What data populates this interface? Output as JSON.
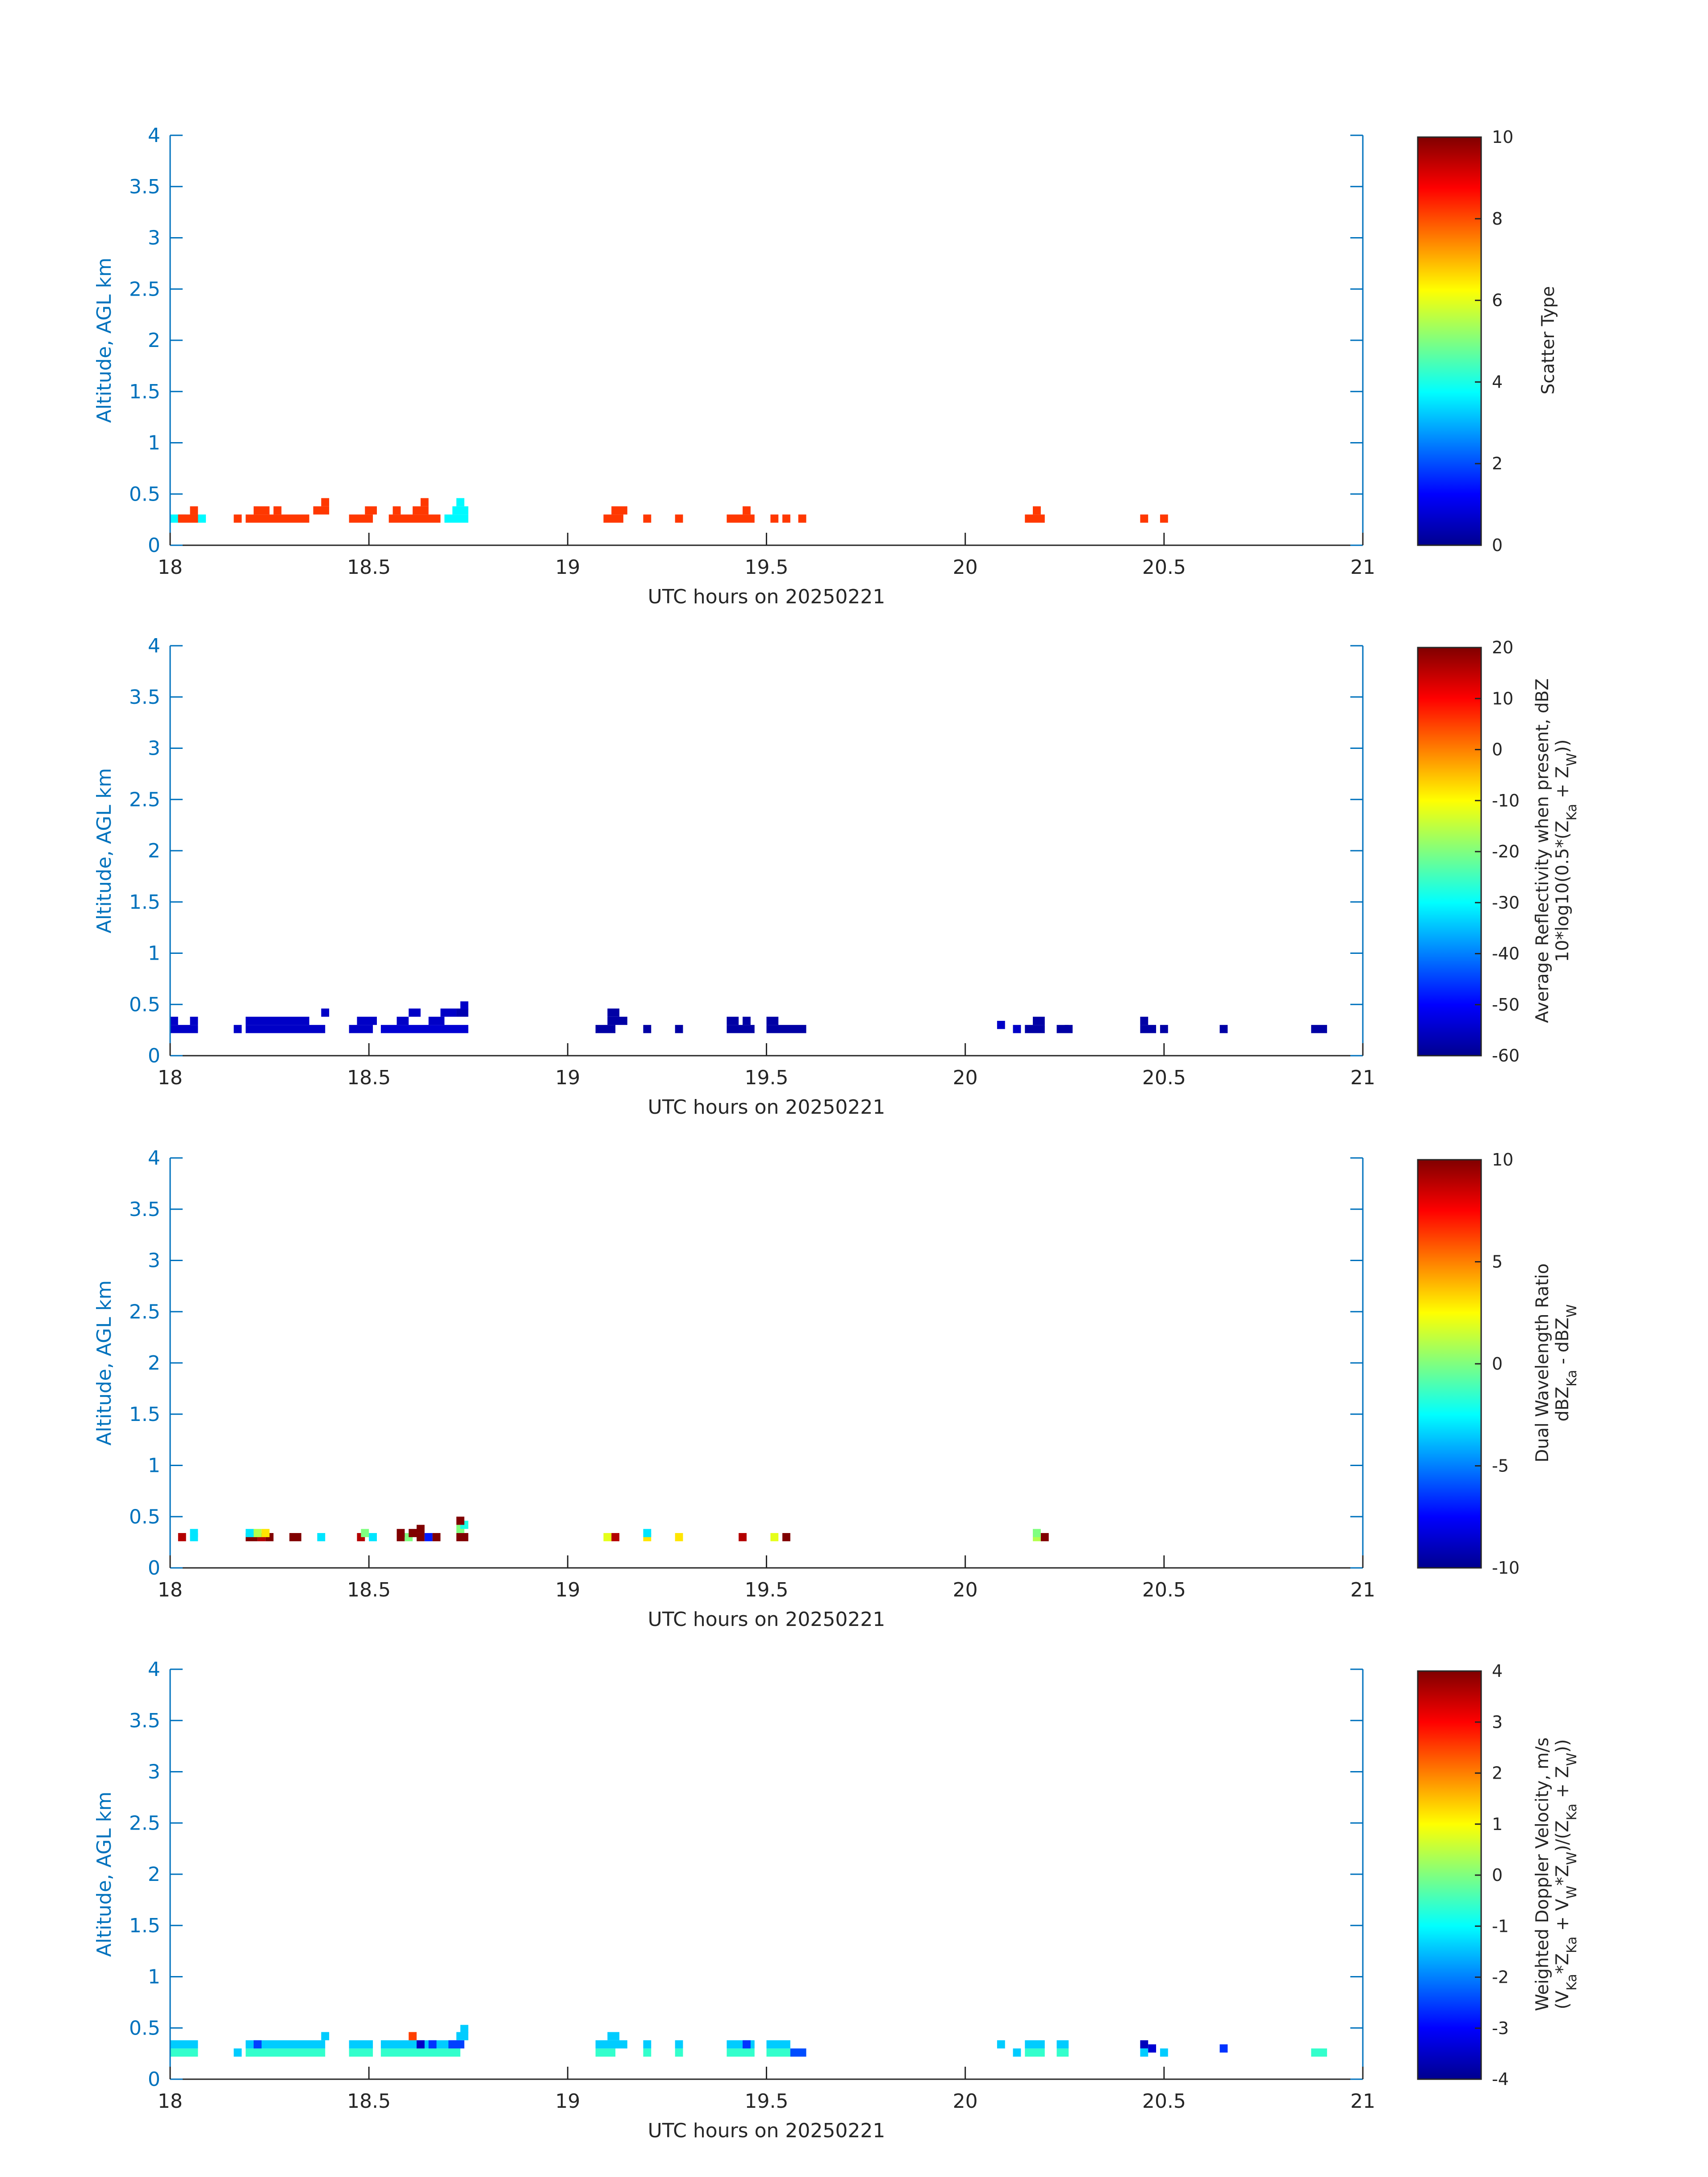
{
  "colors": {
    "axis_blue": "#0072BD",
    "text_dark": "#262626",
    "border": "#000000"
  },
  "chart_data": [
    {
      "type": "heatmap",
      "ylabel": "Altitude, AGL km",
      "xlabel": "UTC hours on 20250221",
      "xlim": [
        18,
        21
      ],
      "ylim": [
        0,
        4
      ],
      "xticks": [
        "18",
        "18.5",
        "19",
        "19.5",
        "20",
        "20.5",
        "21"
      ],
      "yticks": [
        "0",
        "0.5",
        "1",
        "1.5",
        "2",
        "2.5",
        "3",
        "3.5",
        "4"
      ],
      "colorbar": {
        "label_lines": [
          "Scatter Type"
        ],
        "range": [
          0,
          10
        ],
        "ticks": [
          "0",
          "2",
          "4",
          "6",
          "8",
          "10"
        ]
      },
      "cells": [
        [
          18.0,
          0.22,
          0.09,
          3.7
        ],
        [
          18.02,
          0.22,
          0.02,
          8.2
        ],
        [
          18.02,
          0.22,
          0.05,
          8.2
        ],
        [
          18.05,
          0.22,
          0.02,
          8.2
        ],
        [
          18.05,
          0.3,
          0.02,
          8.2
        ],
        [
          18.16,
          0.22,
          0.02,
          8.2
        ],
        [
          18.19,
          0.22,
          0.16,
          8.2
        ],
        [
          18.21,
          0.3,
          0.04,
          8.2
        ],
        [
          18.26,
          0.3,
          0.02,
          8.2
        ],
        [
          18.36,
          0.3,
          0.04,
          8.2
        ],
        [
          18.38,
          0.38,
          0.02,
          8.2
        ],
        [
          18.45,
          0.22,
          0.06,
          8.2
        ],
        [
          18.49,
          0.3,
          0.03,
          8.2
        ],
        [
          18.55,
          0.22,
          0.13,
          8.2
        ],
        [
          18.56,
          0.3,
          0.02,
          8.2
        ],
        [
          18.61,
          0.3,
          0.04,
          8.2
        ],
        [
          18.63,
          0.38,
          0.02,
          8.2
        ],
        [
          18.69,
          0.22,
          0.06,
          3.7
        ],
        [
          18.71,
          0.3,
          0.04,
          3.7
        ],
        [
          18.72,
          0.38,
          0.02,
          3.7
        ],
        [
          19.09,
          0.22,
          0.05,
          8.2
        ],
        [
          19.11,
          0.3,
          0.04,
          8.2
        ],
        [
          19.19,
          0.22,
          0.02,
          8.2
        ],
        [
          19.27,
          0.22,
          0.02,
          8.2
        ],
        [
          19.4,
          0.22,
          0.07,
          8.2
        ],
        [
          19.44,
          0.3,
          0.02,
          8.2
        ],
        [
          19.51,
          0.22,
          0.02,
          8.2
        ],
        [
          19.54,
          0.22,
          0.02,
          8.2
        ],
        [
          19.58,
          0.22,
          0.02,
          8.2
        ],
        [
          20.15,
          0.22,
          0.05,
          8.2
        ],
        [
          20.17,
          0.3,
          0.02,
          8.2
        ],
        [
          20.44,
          0.22,
          0.02,
          8.2
        ],
        [
          20.49,
          0.22,
          0.02,
          8.2
        ]
      ]
    },
    {
      "type": "heatmap",
      "ylabel": "Altitude, AGL km",
      "xlabel": "UTC hours on 20250221",
      "xlim": [
        18,
        21
      ],
      "ylim": [
        0,
        4
      ],
      "xticks": [
        "18",
        "18.5",
        "19",
        "19.5",
        "20",
        "20.5",
        "21"
      ],
      "yticks": [
        "0",
        "0.5",
        "1",
        "1.5",
        "2",
        "2.5",
        "3",
        "3.5",
        "4"
      ],
      "colorbar": {
        "label_lines": [
          "Average Reflectivity when present, dBZ",
          "10*log10(0.5*(Z",
          "Ka",
          " + Z",
          "W",
          "))"
        ],
        "range": [
          -60,
          20
        ],
        "ticks": [
          "-60",
          "-50",
          "-40",
          "-30",
          "-20",
          "-10",
          "0",
          "10",
          "20"
        ]
      },
      "cells": [
        [
          18.0,
          0.22,
          0.07,
          -55
        ],
        [
          18.0,
          0.3,
          0.02,
          -55
        ],
        [
          18.05,
          0.3,
          0.02,
          -55
        ],
        [
          18.16,
          0.22,
          0.02,
          -55
        ],
        [
          18.19,
          0.22,
          0.2,
          -55
        ],
        [
          18.19,
          0.3,
          0.12,
          -55
        ],
        [
          18.31,
          0.3,
          0.04,
          -55
        ],
        [
          18.38,
          0.38,
          0.02,
          -55
        ],
        [
          18.45,
          0.22,
          0.06,
          -55
        ],
        [
          18.47,
          0.3,
          0.05,
          -55
        ],
        [
          18.53,
          0.22,
          0.22,
          -54
        ],
        [
          18.57,
          0.3,
          0.03,
          -55
        ],
        [
          18.6,
          0.38,
          0.03,
          -55
        ],
        [
          18.65,
          0.3,
          0.04,
          -55
        ],
        [
          18.68,
          0.38,
          0.04,
          -55
        ],
        [
          18.72,
          0.38,
          0.03,
          -57
        ],
        [
          18.73,
          0.45,
          0.02,
          -55
        ],
        [
          19.07,
          0.22,
          0.05,
          -58
        ],
        [
          19.1,
          0.3,
          0.05,
          -58
        ],
        [
          19.1,
          0.38,
          0.03,
          -58
        ],
        [
          19.19,
          0.22,
          0.02,
          -58
        ],
        [
          19.27,
          0.22,
          0.02,
          -58
        ],
        [
          19.4,
          0.22,
          0.07,
          -58
        ],
        [
          19.4,
          0.3,
          0.03,
          -58
        ],
        [
          19.44,
          0.3,
          0.02,
          -58
        ],
        [
          19.5,
          0.22,
          0.1,
          -58
        ],
        [
          19.5,
          0.3,
          0.03,
          -58
        ],
        [
          20.08,
          0.26,
          0.02,
          -55
        ],
        [
          20.12,
          0.22,
          0.02,
          -55
        ],
        [
          20.15,
          0.22,
          0.05,
          -58
        ],
        [
          20.17,
          0.3,
          0.03,
          -58
        ],
        [
          20.23,
          0.22,
          0.03,
          -58
        ],
        [
          20.25,
          0.22,
          0.02,
          -58
        ],
        [
          20.44,
          0.22,
          0.04,
          -58
        ],
        [
          20.44,
          0.3,
          0.02,
          -58
        ],
        [
          20.49,
          0.22,
          0.02,
          -58
        ],
        [
          20.64,
          0.22,
          0.02,
          -58
        ],
        [
          20.87,
          0.22,
          0.04,
          -58
        ]
      ]
    },
    {
      "type": "heatmap",
      "ylabel": "Altitude, AGL km",
      "xlabel": "UTC hours on 20250221",
      "xlim": [
        18,
        21
      ],
      "ylim": [
        0,
        4
      ],
      "xticks": [
        "18",
        "18.5",
        "19",
        "19.5",
        "20",
        "20.5",
        "21"
      ],
      "yticks": [
        "0",
        "0.5",
        "1",
        "1.5",
        "2",
        "2.5",
        "3",
        "3.5",
        "4"
      ],
      "colorbar": {
        "label_lines": [
          "Dual Wavelength Ratio",
          "dBZ",
          "Ka",
          " - dBZ",
          "W"
        ],
        "range": [
          -10,
          10
        ],
        "ticks": [
          "-10",
          "-5",
          "0",
          "5",
          "10"
        ]
      },
      "cells": [
        [
          18.02,
          0.26,
          0.02,
          9
        ],
        [
          18.05,
          0.26,
          0.02,
          -3
        ],
        [
          18.05,
          0.3,
          0.02,
          -3
        ],
        [
          18.19,
          0.26,
          0.03,
          10
        ],
        [
          18.22,
          0.26,
          0.02,
          9
        ],
        [
          18.24,
          0.26,
          0.02,
          10
        ],
        [
          18.19,
          0.3,
          0.02,
          -3
        ],
        [
          18.21,
          0.3,
          0.02,
          1
        ],
        [
          18.23,
          0.3,
          0.02,
          3
        ],
        [
          18.3,
          0.26,
          0.03,
          10
        ],
        [
          18.37,
          0.26,
          0.02,
          -3
        ],
        [
          18.47,
          0.26,
          0.02,
          9
        ],
        [
          18.48,
          0.3,
          0.02,
          0
        ],
        [
          18.5,
          0.26,
          0.02,
          -3
        ],
        [
          18.57,
          0.26,
          0.02,
          10
        ],
        [
          18.59,
          0.26,
          0.02,
          0
        ],
        [
          18.6,
          0.3,
          0.02,
          10
        ],
        [
          18.62,
          0.26,
          0.02,
          10
        ],
        [
          18.64,
          0.26,
          0.02,
          -7
        ],
        [
          18.66,
          0.26,
          0.02,
          10
        ],
        [
          18.57,
          0.3,
          0.02,
          10
        ],
        [
          18.62,
          0.34,
          0.02,
          10
        ],
        [
          18.72,
          0.26,
          0.03,
          10
        ],
        [
          18.72,
          0.34,
          0.02,
          0
        ],
        [
          18.73,
          0.38,
          0.02,
          -2
        ],
        [
          18.72,
          0.42,
          0.02,
          10
        ],
        [
          19.09,
          0.26,
          0.02,
          2
        ],
        [
          19.11,
          0.26,
          0.02,
          9
        ],
        [
          19.19,
          0.26,
          0.02,
          3
        ],
        [
          19.19,
          0.3,
          0.02,
          -3
        ],
        [
          19.27,
          0.26,
          0.02,
          3
        ],
        [
          19.43,
          0.26,
          0.02,
          9
        ],
        [
          19.51,
          0.26,
          0.02,
          2
        ],
        [
          19.54,
          0.26,
          0.02,
          10
        ],
        [
          20.17,
          0.26,
          0.02,
          1
        ],
        [
          20.19,
          0.26,
          0.02,
          10
        ],
        [
          20.17,
          0.3,
          0.02,
          0
        ]
      ]
    },
    {
      "type": "heatmap",
      "ylabel": "Altitude, AGL km",
      "xlabel": "UTC hours on 20250221",
      "xlim": [
        18,
        21
      ],
      "ylim": [
        0,
        4
      ],
      "xticks": [
        "18",
        "18.5",
        "19",
        "19.5",
        "20",
        "20.5",
        "21"
      ],
      "yticks": [
        "0",
        "0.5",
        "1",
        "1.5",
        "2",
        "2.5",
        "3",
        "3.5",
        "4"
      ],
      "colorbar": {
        "label_lines": [
          "Weighted Doppler Velocity, m/s",
          "(V",
          "Ka",
          "*Z",
          "Ka",
          " + V",
          "W",
          "*Z",
          "W",
          ")/(Z",
          "Ka",
          " + Z",
          "W",
          "))"
        ],
        "range": [
          -4,
          4
        ],
        "ticks": [
          "-4",
          "-3",
          "-2",
          "-1",
          "0",
          "1",
          "2",
          "3",
          "4"
        ]
      },
      "cells": [
        [
          18.0,
          0.22,
          0.07,
          -0.6
        ],
        [
          18.0,
          0.3,
          0.07,
          -1.4
        ],
        [
          18.16,
          0.22,
          0.02,
          -1.4
        ],
        [
          18.19,
          0.22,
          0.2,
          -0.6
        ],
        [
          18.19,
          0.3,
          0.2,
          -1.4
        ],
        [
          18.21,
          0.3,
          0.02,
          -2.5
        ],
        [
          18.38,
          0.38,
          0.02,
          -1.4
        ],
        [
          18.45,
          0.22,
          0.06,
          -0.6
        ],
        [
          18.45,
          0.3,
          0.06,
          -1.4
        ],
        [
          18.53,
          0.22,
          0.2,
          -0.6
        ],
        [
          18.53,
          0.3,
          0.2,
          -1.4
        ],
        [
          18.6,
          0.38,
          0.02,
          2.5
        ],
        [
          18.62,
          0.3,
          0.02,
          -3.5
        ],
        [
          18.65,
          0.3,
          0.02,
          -2.6
        ],
        [
          18.7,
          0.3,
          0.04,
          -2.5
        ],
        [
          18.72,
          0.38,
          0.03,
          -1.4
        ],
        [
          18.73,
          0.45,
          0.02,
          -1.4
        ],
        [
          19.07,
          0.22,
          0.05,
          -0.6
        ],
        [
          19.07,
          0.3,
          0.08,
          -1.4
        ],
        [
          19.1,
          0.38,
          0.03,
          -1.4
        ],
        [
          19.19,
          0.22,
          0.02,
          -0.6
        ],
        [
          19.19,
          0.3,
          0.02,
          -1.4
        ],
        [
          19.27,
          0.22,
          0.02,
          -0.6
        ],
        [
          19.27,
          0.3,
          0.02,
          -1.4
        ],
        [
          19.4,
          0.22,
          0.07,
          -0.6
        ],
        [
          19.4,
          0.3,
          0.07,
          -1.4
        ],
        [
          19.44,
          0.3,
          0.02,
          -2.6
        ],
        [
          19.5,
          0.22,
          0.06,
          -0.6
        ],
        [
          19.5,
          0.3,
          0.06,
          -1.4
        ],
        [
          19.56,
          0.22,
          0.04,
          -2.4
        ],
        [
          20.08,
          0.3,
          0.02,
          -1.4
        ],
        [
          20.12,
          0.22,
          0.02,
          -1.4
        ],
        [
          20.15,
          0.22,
          0.05,
          -0.6
        ],
        [
          20.15,
          0.3,
          0.05,
          -1.4
        ],
        [
          20.23,
          0.22,
          0.03,
          -0.6
        ],
        [
          20.23,
          0.3,
          0.03,
          -1.4
        ],
        [
          20.44,
          0.3,
          0.02,
          -3.6
        ],
        [
          20.44,
          0.22,
          0.02,
          -1.4
        ],
        [
          20.46,
          0.26,
          0.02,
          -3.4
        ],
        [
          20.49,
          0.22,
          0.02,
          -1.4
        ],
        [
          20.64,
          0.26,
          0.02,
          -2.6
        ],
        [
          20.87,
          0.22,
          0.04,
          -0.6
        ]
      ]
    }
  ]
}
